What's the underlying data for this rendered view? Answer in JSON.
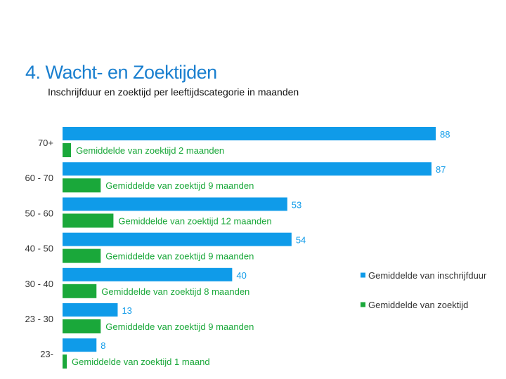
{
  "title": "4. Wacht- en Zoektijden",
  "subtitle": "Inschrijfduur en zoektijd per leeftijdscategorie in maanden",
  "chart_data": {
    "type": "bar",
    "orientation": "horizontal",
    "categories": [
      "70+",
      "60 - 70",
      "50 - 60",
      "40 - 50",
      "30 - 40",
      "23 - 30",
      "23-"
    ],
    "series": [
      {
        "name": "Gemiddelde van inschrijfduur",
        "color": "#0f9be9",
        "values": [
          88,
          87,
          53,
          54,
          40,
          13,
          8
        ]
      },
      {
        "name": "Gemiddelde van zoektijd",
        "color": "#1aa83a",
        "values": [
          2,
          9,
          12,
          9,
          8,
          9,
          1
        ]
      }
    ],
    "zoektijd_labels": [
      "Gemiddelde van zoektijd 2 maanden",
      "Gemiddelde van zoektijd 9 maanden",
      "Gemiddelde van zoektijd 12 maanden",
      "Gemiddelde van zoektijd 9 maanden",
      "Gemiddelde van zoektijd 8 maanden",
      "Gemiddelde van zoektijd 9 maanden",
      "Gemiddelde van zoektijd 1 maand"
    ],
    "legend_position": "right",
    "xlim": [
      0,
      90
    ],
    "grid": false
  }
}
